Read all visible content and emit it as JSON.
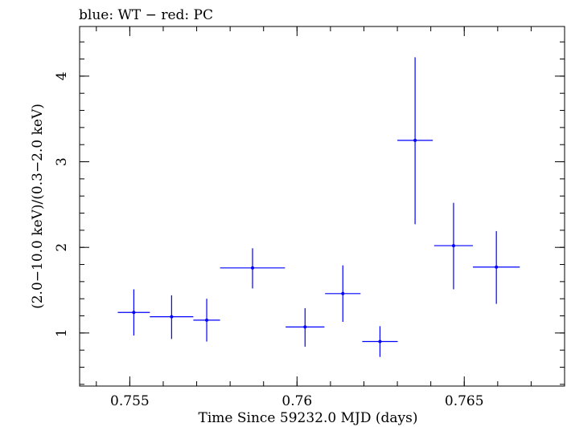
{
  "chart_data": {
    "type": "scatter",
    "title": "blue: WT − red: PC",
    "xlabel": "Time Since 59232.0 MJD (days)",
    "ylabel": "(2.0−10.0 keV)/(0.3−2.0 keV)",
    "xlim": [
      0.7535,
      0.768
    ],
    "ylim": [
      0.38,
      4.58
    ],
    "xticks": [
      {
        "value": 0.755,
        "label": "0.755"
      },
      {
        "value": 0.76,
        "label": "0.76"
      },
      {
        "value": 0.765,
        "label": "0.765"
      }
    ],
    "yticks": [
      {
        "value": 1,
        "label": "1"
      },
      {
        "value": 2,
        "label": "2"
      },
      {
        "value": 3,
        "label": "3"
      },
      {
        "value": 4,
        "label": "4"
      }
    ],
    "grid": false,
    "series": [
      {
        "color": "#0000ff",
        "points": [
          {
            "x": 0.75512,
            "xerr": 0.00048,
            "y": 1.24,
            "ylo": 0.97,
            "yhi": 1.51
          },
          {
            "x": 0.75625,
            "xerr": 0.00065,
            "y": 1.19,
            "ylo": 0.93,
            "yhi": 1.44
          },
          {
            "x": 0.7573,
            "xerr": 0.0004,
            "y": 1.15,
            "ylo": 0.9,
            "yhi": 1.4
          },
          {
            "x": 0.75867,
            "xerr": 0.00097,
            "y": 1.76,
            "ylo": 1.52,
            "yhi": 1.99
          },
          {
            "x": 0.76024,
            "xerr": 0.00058,
            "y": 1.07,
            "ylo": 0.84,
            "yhi": 1.29
          },
          {
            "x": 0.76137,
            "xerr": 0.00053,
            "y": 1.46,
            "ylo": 1.13,
            "yhi": 1.79
          },
          {
            "x": 0.76248,
            "xerr": 0.00053,
            "y": 0.9,
            "ylo": 0.72,
            "yhi": 1.08
          },
          {
            "x": 0.76353,
            "xerr": 0.00053,
            "y": 3.25,
            "ylo": 2.27,
            "yhi": 4.22
          },
          {
            "x": 0.76468,
            "xerr": 0.00058,
            "y": 2.02,
            "ylo": 1.51,
            "yhi": 2.52
          },
          {
            "x": 0.76596,
            "xerr": 0.0007,
            "y": 1.77,
            "ylo": 1.34,
            "yhi": 2.19
          }
        ]
      }
    ]
  }
}
